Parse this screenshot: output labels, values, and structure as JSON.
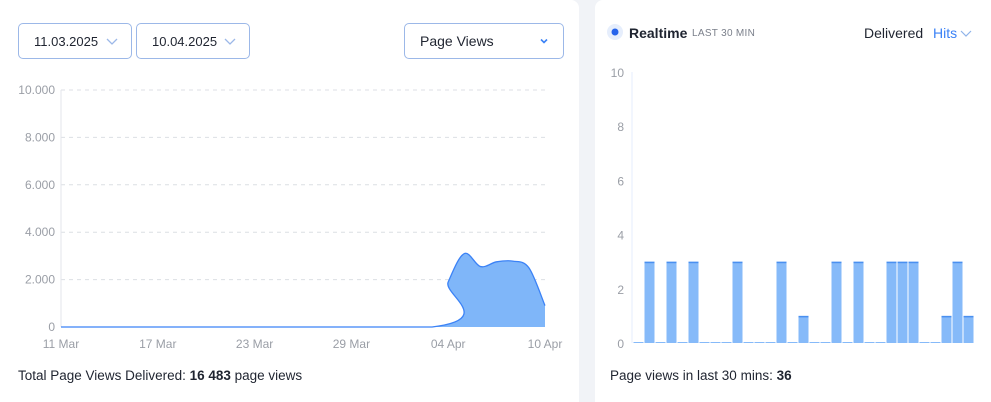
{
  "controls": {
    "start_date": "11.03.2025",
    "end_date": "10.04.2025",
    "metric": "Page Views"
  },
  "main_chart": {
    "footer_prefix": "Total Page Views Delivered: ",
    "footer_value": "16 483",
    "footer_suffix": " page views"
  },
  "realtime": {
    "title": "Realtime",
    "subtitle": "LAST 30 MIN",
    "mode_label": "Delivered",
    "mode_value": "Hits",
    "footer_prefix": "Page views in last 30 mins: ",
    "footer_value": "36"
  },
  "colors": {
    "accent": "#3b82f6",
    "fill": "#7fb6f9",
    "live_dot": "#2563eb"
  },
  "chart_data": [
    {
      "type": "area",
      "x_start": "2025-03-11",
      "x_end": "2025-04-10",
      "x_tick_labels": [
        "11 Mar",
        "17 Mar",
        "23 Mar",
        "29 Mar",
        "04 Apr",
        "10 Apr"
      ],
      "y_tick_labels": [
        "0",
        "2.000",
        "4.000",
        "6.000",
        "8.000",
        "10.000"
      ],
      "ylim": [
        0,
        10000
      ],
      "grid": true,
      "x": [
        "2025-03-11",
        "2025-04-03",
        "2025-04-04",
        "2025-04-05",
        "2025-04-06",
        "2025-04-07",
        "2025-04-08",
        "2025-04-09",
        "2025-04-10"
      ],
      "values": [
        0,
        0,
        1900,
        3100,
        2550,
        2750,
        2780,
        2500,
        900
      ]
    },
    {
      "type": "bar",
      "ylim": [
        0,
        10
      ],
      "y_tick_labels": [
        "0",
        "2",
        "4",
        "6",
        "8",
        "10"
      ],
      "values": [
        0,
        3,
        0,
        3,
        0,
        3,
        0,
        0,
        0,
        3,
        0,
        0,
        0,
        3,
        0,
        1,
        0,
        0,
        3,
        0,
        3,
        0,
        0,
        3,
        3,
        3,
        0,
        0,
        1,
        3,
        1
      ]
    }
  ]
}
